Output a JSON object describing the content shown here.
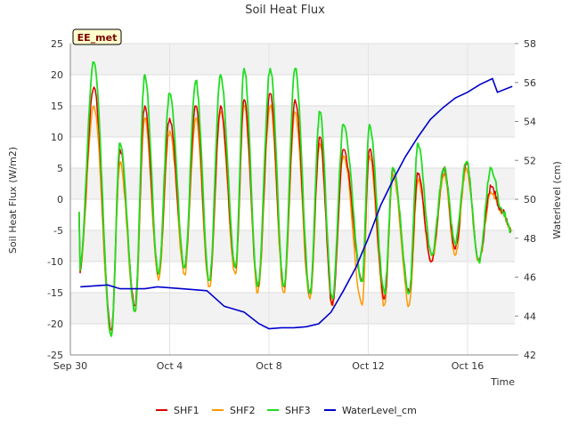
{
  "chart_data": {
    "type": "line",
    "title": "Soil Heat Flux",
    "xlabel": "Time",
    "ylabel": "Soil Heat Flux (W/m2)",
    "y2label": "Waterlevel (cm)",
    "badge": "EE_met",
    "xlim": [
      0,
      17.9
    ],
    "ylim": [
      -25,
      25
    ],
    "y2lim": [
      42,
      58
    ],
    "xticks": [
      {
        "x": 0,
        "label": "Sep 30"
      },
      {
        "x": 4,
        "label": "Oct 4"
      },
      {
        "x": 8,
        "label": "Oct 8"
      },
      {
        "x": 12,
        "label": "Oct 12"
      },
      {
        "x": 16,
        "label": "Oct 16"
      }
    ],
    "yticks": [
      -25,
      -20,
      -15,
      -10,
      -5,
      0,
      5,
      10,
      15,
      20,
      25
    ],
    "y2ticks": [
      42,
      44,
      46,
      48,
      50,
      52,
      54,
      56,
      58
    ],
    "flux_series": [
      {
        "name": "SHF1",
        "color": "#dd0000",
        "axis": "left"
      },
      {
        "name": "SHF2",
        "color": "#ff9900",
        "axis": "left"
      },
      {
        "name": "SHF3",
        "color": "#22dd22",
        "axis": "left"
      }
    ],
    "flux_extrema": {
      "x": [
        0.35,
        0.95,
        1.65,
        2.0,
        2.6,
        3.0,
        3.55,
        4.0,
        4.6,
        5.05,
        5.6,
        6.05,
        6.65,
        7.0,
        7.55,
        8.05,
        8.6,
        9.05,
        9.65,
        10.05,
        10.55,
        11.0,
        11.75,
        12.05,
        12.65,
        13.0,
        13.65,
        14.0,
        14.55,
        15.05,
        15.5,
        15.95,
        16.45,
        16.95,
        17.4,
        17.75
      ],
      "SHF1": [
        -12,
        18,
        -21,
        8,
        -17,
        15,
        -12,
        13,
        -11,
        15,
        -13,
        15,
        -11,
        16,
        -14,
        17,
        -14,
        16,
        -15,
        10,
        -17,
        8,
        -13,
        8,
        -16,
        5,
        -15,
        4,
        -10,
        5,
        -8,
        6,
        -10,
        2,
        -2,
        -5
      ],
      "SHF2": [
        -12,
        15,
        -22,
        6,
        -18,
        13,
        -13,
        11,
        -12,
        13,
        -14,
        14,
        -12,
        15,
        -15,
        15,
        -15,
        14,
        -16,
        9,
        -17,
        7,
        -17,
        7,
        -17,
        4,
        -17,
        3,
        -10,
        4,
        -9,
        5,
        -10,
        1,
        -2,
        -5
      ],
      "SHF3": [
        -12,
        22,
        -22,
        9,
        -18,
        20,
        -12,
        17,
        -11,
        19,
        -13,
        20,
        -11,
        21,
        -14,
        21,
        -14,
        21,
        -15,
        14,
        -16,
        12,
        -13,
        12,
        -15,
        5,
        -15,
        9,
        -9,
        5,
        -7,
        6,
        -10,
        5,
        -2,
        -5
      ]
    },
    "waterlevel": {
      "name": "WaterLevel_cm",
      "color": "#0000cc",
      "axis": "right",
      "x": [
        0.4,
        1.0,
        1.5,
        2.0,
        3.0,
        3.5,
        4.5,
        5.5,
        6.2,
        7.0,
        7.6,
        8.0,
        8.5,
        9.0,
        9.5,
        10.0,
        10.5,
        11.0,
        11.5,
        12.0,
        12.5,
        13.0,
        13.5,
        14.0,
        14.5,
        15.0,
        15.5,
        16.0,
        16.5,
        17.0,
        17.2,
        17.8
      ],
      "y": [
        45.5,
        45.55,
        45.6,
        45.4,
        45.4,
        45.5,
        45.4,
        45.3,
        44.5,
        44.2,
        43.6,
        43.35,
        43.4,
        43.4,
        43.45,
        43.6,
        44.2,
        45.3,
        46.5,
        48.0,
        49.7,
        51.0,
        52.2,
        53.2,
        54.1,
        54.7,
        55.2,
        55.5,
        55.9,
        56.2,
        55.5,
        55.8
      ]
    },
    "legend": [
      "SHF1",
      "SHF2",
      "SHF3",
      "WaterLevel_cm"
    ],
    "legend_position": "bottom",
    "grid": true
  }
}
